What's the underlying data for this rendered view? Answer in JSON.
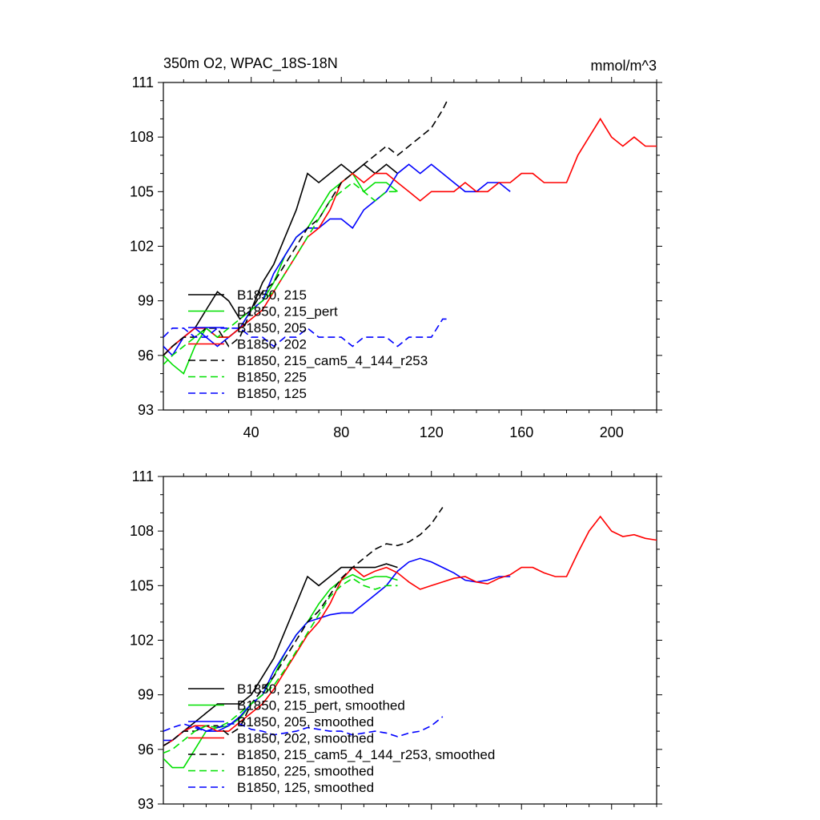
{
  "chart_data": [
    {
      "type": "line",
      "title": "350m O2, WPAC_18S-18N",
      "units": "mmol/m^3",
      "ylim": [
        93,
        111
      ],
      "xlim": [
        1,
        220
      ],
      "yticks": [
        93,
        96,
        99,
        102,
        105,
        108,
        111
      ],
      "xticks": [
        40,
        80,
        120,
        160,
        200
      ],
      "grid": false,
      "legend_position": "lower-left",
      "series": [
        {
          "name": "B1850, 215",
          "color": "#000000",
          "dash": "solid",
          "x": [
            1,
            5,
            10,
            15,
            20,
            25,
            30,
            35,
            40,
            45,
            50,
            55,
            60,
            65,
            70,
            75,
            80,
            85,
            90,
            95,
            100,
            105
          ],
          "y": [
            96,
            96.5,
            97,
            97.5,
            98.5,
            99.5,
            99,
            98,
            98.5,
            100,
            101,
            102.5,
            104,
            106,
            105.5,
            106,
            106.5,
            106,
            106.5,
            106,
            106.5,
            106
          ]
        },
        {
          "name": "B1850, 215_pert",
          "color": "#00e000",
          "dash": "solid",
          "x": [
            1,
            5,
            10,
            15,
            20,
            25,
            30,
            35,
            40,
            45,
            50,
            55,
            60,
            65,
            70,
            75,
            80,
            85,
            90,
            95,
            100,
            105
          ],
          "y": [
            96,
            95.5,
            95,
            96.5,
            97.5,
            97,
            97,
            97.5,
            98.5,
            99,
            100,
            101.5,
            102.5,
            103,
            104,
            105,
            105.5,
            106,
            105,
            105.5,
            105.5,
            105
          ]
        },
        {
          "name": "B1850, 205",
          "color": "#0000ff",
          "dash": "solid",
          "x": [
            1,
            5,
            10,
            15,
            20,
            25,
            30,
            35,
            40,
            45,
            50,
            55,
            60,
            65,
            70,
            75,
            80,
            85,
            90,
            95,
            100,
            105,
            110,
            115,
            120,
            125,
            130,
            135,
            140,
            145,
            150,
            155
          ],
          "y": [
            96.5,
            96,
            97,
            97.5,
            97,
            96.5,
            97,
            97.5,
            98.5,
            99,
            100.5,
            101.5,
            102.5,
            103,
            103,
            103.5,
            103.5,
            103,
            104,
            104.5,
            105,
            106,
            106.5,
            106,
            106.5,
            106,
            105.5,
            105,
            105,
            105.5,
            105.5,
            105
          ]
        },
        {
          "name": "B1850, 202",
          "color": "#ff0000",
          "dash": "solid",
          "x": [
            1,
            5,
            10,
            15,
            20,
            25,
            30,
            35,
            40,
            45,
            50,
            55,
            60,
            65,
            70,
            75,
            80,
            85,
            90,
            95,
            100,
            105,
            110,
            115,
            120,
            125,
            130,
            135,
            140,
            145,
            150,
            155,
            160,
            165,
            170,
            175,
            180,
            185,
            190,
            195,
            200,
            205,
            210,
            215,
            220
          ],
          "y": [
            96,
            96.5,
            97,
            97.5,
            97.5,
            97,
            97,
            97.5,
            98,
            98.5,
            99.5,
            100.5,
            101.5,
            102.5,
            103,
            104,
            105.5,
            106,
            105.5,
            106,
            106,
            105.5,
            105,
            104.5,
            105,
            105,
            105,
            105.5,
            105,
            105,
            105.5,
            105.5,
            106,
            106,
            105.5,
            105.5,
            105.5,
            107,
            108,
            109,
            108,
            107.5,
            108,
            107.5,
            107.5
          ]
        },
        {
          "name": "B1850, 215_cam5_4_144_r253",
          "color": "#000000",
          "dash": "dashed",
          "x": [
            1,
            5,
            10,
            15,
            20,
            25,
            30,
            35,
            40,
            45,
            50,
            55,
            60,
            65,
            70,
            75,
            80,
            85,
            90,
            95,
            100,
            105,
            110,
            115,
            120,
            125,
            127
          ],
          "y": [
            96,
            96.5,
            97,
            97,
            97.5,
            97.5,
            96.5,
            97,
            98.5,
            99.5,
            100,
            101,
            102,
            103,
            103.5,
            104.5,
            105.5,
            106,
            106.5,
            107,
            107.5,
            107,
            107.5,
            108,
            108.5,
            109.5,
            110
          ]
        },
        {
          "name": "B1850, 225",
          "color": "#00e000",
          "dash": "dashed",
          "x": [
            1,
            5,
            10,
            15,
            20,
            25,
            30,
            35,
            40,
            45,
            50,
            55,
            60,
            65,
            70,
            75,
            80,
            85,
            90,
            95,
            100,
            105
          ],
          "y": [
            95.5,
            96,
            96.5,
            97,
            97.5,
            97,
            97.5,
            98,
            98.5,
            99,
            99.5,
            100.5,
            101.5,
            102.5,
            103.5,
            104.5,
            105,
            105.5,
            105,
            104.5,
            105,
            105
          ]
        },
        {
          "name": "B1850, 125",
          "color": "#0000ff",
          "dash": "dashed",
          "x": [
            1,
            5,
            10,
            15,
            20,
            25,
            30,
            35,
            40,
            45,
            50,
            55,
            60,
            65,
            70,
            75,
            80,
            85,
            90,
            95,
            100,
            105,
            110,
            115,
            120,
            125,
            127
          ],
          "y": [
            97,
            97.5,
            97.5,
            97,
            97,
            97.5,
            97.5,
            97.5,
            97,
            97,
            96.5,
            97,
            97,
            97.5,
            97,
            97,
            97,
            96.5,
            97,
            97,
            97,
            96.5,
            97,
            97,
            97,
            98,
            98
          ]
        }
      ]
    },
    {
      "type": "line",
      "ylim": [
        93,
        111
      ],
      "xlim": [
        1,
        220
      ],
      "yticks": [
        93,
        96,
        99,
        102,
        105,
        108,
        111
      ],
      "grid": false,
      "legend_position": "lower-left",
      "series": [
        {
          "name": "B1850, 215, smoothed",
          "color": "#000000",
          "dash": "solid",
          "x": [
            1,
            5,
            10,
            15,
            20,
            25,
            30,
            35,
            40,
            45,
            50,
            55,
            60,
            65,
            70,
            75,
            80,
            85,
            90,
            95,
            100,
            105
          ],
          "y": [
            96.2,
            96.5,
            97,
            97.5,
            98,
            98.5,
            98.5,
            98.5,
            99,
            100,
            101,
            102.5,
            104,
            105.5,
            105,
            105.5,
            106,
            106,
            106,
            106,
            106.2,
            106
          ]
        },
        {
          "name": "B1850, 215_pert, smoothed",
          "color": "#00e000",
          "dash": "solid",
          "x": [
            1,
            5,
            10,
            15,
            20,
            25,
            30,
            35,
            40,
            45,
            50,
            55,
            60,
            65,
            70,
            75,
            80,
            85,
            90,
            95,
            100,
            105
          ],
          "y": [
            95.5,
            95,
            95,
            96,
            97,
            97.2,
            97.3,
            97.7,
            98.5,
            99,
            100,
            101.3,
            102.3,
            103,
            104,
            104.8,
            105.3,
            105.6,
            105.3,
            105.5,
            105.5,
            105.3
          ]
        },
        {
          "name": "B1850, 205, smoothed",
          "color": "#0000ff",
          "dash": "solid",
          "x": [
            1,
            5,
            10,
            15,
            20,
            25,
            30,
            35,
            40,
            45,
            50,
            55,
            60,
            65,
            70,
            75,
            80,
            85,
            90,
            95,
            100,
            105,
            110,
            115,
            120,
            125,
            130,
            135,
            140,
            145,
            150,
            155
          ],
          "y": [
            96.5,
            96.5,
            97,
            97.3,
            97,
            97,
            97.3,
            97.8,
            98.5,
            99,
            100.3,
            101.3,
            102.3,
            103,
            103.2,
            103.4,
            103.5,
            103.5,
            104,
            104.5,
            105,
            105.8,
            106.3,
            106.5,
            106.3,
            106,
            105.7,
            105.3,
            105.2,
            105.3,
            105.5,
            105.5
          ]
        },
        {
          "name": "B1850, 202, smoothed",
          "color": "#ff0000",
          "dash": "solid",
          "x": [
            1,
            5,
            10,
            15,
            20,
            25,
            30,
            35,
            40,
            45,
            50,
            55,
            60,
            65,
            70,
            75,
            80,
            85,
            90,
            95,
            100,
            105,
            110,
            115,
            120,
            125,
            130,
            135,
            140,
            145,
            150,
            155,
            160,
            165,
            170,
            175,
            180,
            185,
            190,
            195,
            200,
            205,
            210,
            215,
            220
          ],
          "y": [
            96.2,
            96.5,
            97,
            97.3,
            97.3,
            97,
            97,
            97.5,
            98,
            98.5,
            99.3,
            100.3,
            101.3,
            102.3,
            103,
            104,
            105.3,
            106,
            105.5,
            105.8,
            106,
            105.7,
            105.2,
            104.8,
            105,
            105.2,
            105.4,
            105.5,
            105.2,
            105.1,
            105.4,
            105.6,
            106,
            106,
            105.7,
            105.5,
            105.5,
            106.8,
            108,
            108.8,
            108,
            107.7,
            107.8,
            107.6,
            107.5
          ]
        },
        {
          "name": "B1850, 215_cam5_4_144_r253, smoothed",
          "color": "#000000",
          "dash": "dashed",
          "x": [
            1,
            5,
            10,
            15,
            20,
            25,
            30,
            35,
            40,
            45,
            50,
            55,
            60,
            65,
            70,
            75,
            80,
            85,
            90,
            95,
            100,
            105,
            110,
            115,
            120,
            125
          ],
          "y": [
            96.2,
            96.5,
            97,
            97,
            97.3,
            97.3,
            96.8,
            97.2,
            98.5,
            99.3,
            100,
            101,
            102,
            103,
            103.6,
            104.5,
            105.4,
            106,
            106.5,
            107,
            107.3,
            107.2,
            107.4,
            107.8,
            108.4,
            109.3
          ]
        },
        {
          "name": "B1850, 225, smoothed",
          "color": "#00e000",
          "dash": "dashed",
          "x": [
            1,
            5,
            10,
            15,
            20,
            25,
            30,
            35,
            40,
            45,
            50,
            55,
            60,
            65,
            70,
            75,
            80,
            85,
            90,
            95,
            100,
            105
          ],
          "y": [
            95.8,
            96,
            96.5,
            97,
            97.3,
            97.2,
            97.5,
            98,
            98.5,
            99,
            99.5,
            100.4,
            101.4,
            102.4,
            103.4,
            104.4,
            105,
            105.4,
            105,
            104.8,
            105,
            105
          ]
        },
        {
          "name": "B1850, 125, smoothed",
          "color": "#0000ff",
          "dash": "dashed",
          "x": [
            1,
            5,
            10,
            15,
            20,
            25,
            30,
            35,
            40,
            45,
            50,
            55,
            60,
            65,
            70,
            75,
            80,
            85,
            90,
            95,
            100,
            105,
            110,
            115,
            120,
            125
          ],
          "y": [
            97,
            97.2,
            97.4,
            97.2,
            97,
            97.2,
            97.4,
            97.4,
            97.1,
            97,
            96.8,
            96.9,
            97,
            97.2,
            97.1,
            97,
            97,
            96.8,
            96.9,
            97,
            96.9,
            96.7,
            96.9,
            97,
            97.3,
            97.8
          ]
        }
      ]
    }
  ]
}
